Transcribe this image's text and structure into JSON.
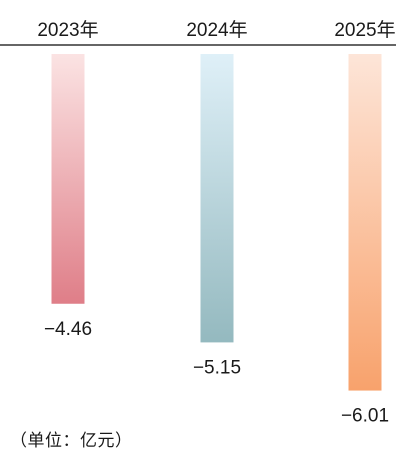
{
  "chart_data": {
    "type": "bar",
    "categories": [
      "2023年",
      "2024年",
      "2025年"
    ],
    "values": [
      -4.46,
      -5.15,
      -6.01
    ],
    "value_labels": [
      "−4.46",
      "−5.15",
      "−6.01"
    ],
    "unit_note": "（单位：亿元）",
    "legend": "none",
    "grid": false,
    "bar_gradients": [
      {
        "top": "#fbe3e3",
        "bottom": "#df7e88"
      },
      {
        "top": "#dff0f8",
        "bottom": "#94b9bf"
      },
      {
        "top": "#fde5d8",
        "bottom": "#f8a26c"
      }
    ],
    "baseline_color": "#333333"
  }
}
